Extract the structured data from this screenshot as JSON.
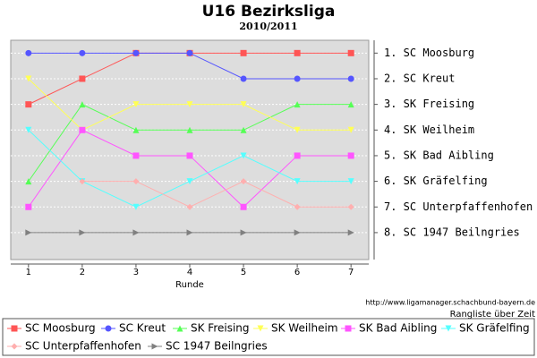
{
  "chart_data": {
    "type": "line",
    "title": "U16 Bezirksliga",
    "subtitle": "2010/2011",
    "x_label": "Runde",
    "source": "http://www.ligamanager.schachbund-bayern.de",
    "note": "Rangliste über Zeit",
    "x": [
      1,
      2,
      3,
      4,
      5,
      6,
      7
    ],
    "xlim": [
      0.67,
      7.33
    ],
    "xticks": [
      1,
      2,
      3,
      4,
      5,
      6,
      7
    ],
    "ylim": [
      0.5,
      9.05
    ],
    "y_inverted": true,
    "grid": true,
    "yticks": [
      {
        "value": 1,
        "label": "1. SC Moosburg"
      },
      {
        "value": 2,
        "label": "2. SC Kreut"
      },
      {
        "value": 3,
        "label": "3. SK Freising"
      },
      {
        "value": 4,
        "label": "4. SK Weilheim"
      },
      {
        "value": 5,
        "label": "5. SK Bad Aibling"
      },
      {
        "value": 6,
        "label": "6. SK Gräfelfing"
      },
      {
        "value": 7,
        "label": "7. SC Unterpfaffenhofen"
      },
      {
        "value": 8,
        "label": "8. SC 1947 Beilngries"
      }
    ],
    "series": [
      {
        "name": "SC Moosburg",
        "color": "#ff5555",
        "marker": "square",
        "values": [
          3,
          2,
          1,
          1,
          1,
          1,
          1
        ]
      },
      {
        "name": "SC Kreut",
        "color": "#5555ff",
        "marker": "circle",
        "values": [
          1,
          1,
          1,
          1,
          2,
          2,
          2
        ]
      },
      {
        "name": "SK Freising",
        "color": "#55ff55",
        "marker": "triangle-up",
        "values": [
          6,
          3,
          4,
          4,
          4,
          3,
          3
        ]
      },
      {
        "name": "SK Weilheim",
        "color": "#ffff55",
        "marker": "triangle-down",
        "values": [
          2,
          4,
          3,
          3,
          3,
          4,
          4
        ]
      },
      {
        "name": "SK Bad Aibling",
        "color": "#ff55ff",
        "marker": "square",
        "values": [
          7,
          4,
          5,
          5,
          7,
          5,
          5
        ]
      },
      {
        "name": "SK Gräfelfing",
        "color": "#55ffff",
        "marker": "triangle-down",
        "values": [
          4,
          6,
          7,
          6,
          5,
          6,
          6
        ]
      },
      {
        "name": "SC Unterpfaffenhofen",
        "color": "#ffafaf",
        "marker": "diamond",
        "values": [
          null,
          6,
          6,
          7,
          6,
          7,
          7
        ]
      },
      {
        "name": "SC 1947 Beilngries",
        "color": "#808080",
        "marker": "triangle-right",
        "values": [
          8,
          8,
          8,
          8,
          8,
          8,
          8
        ]
      }
    ]
  }
}
